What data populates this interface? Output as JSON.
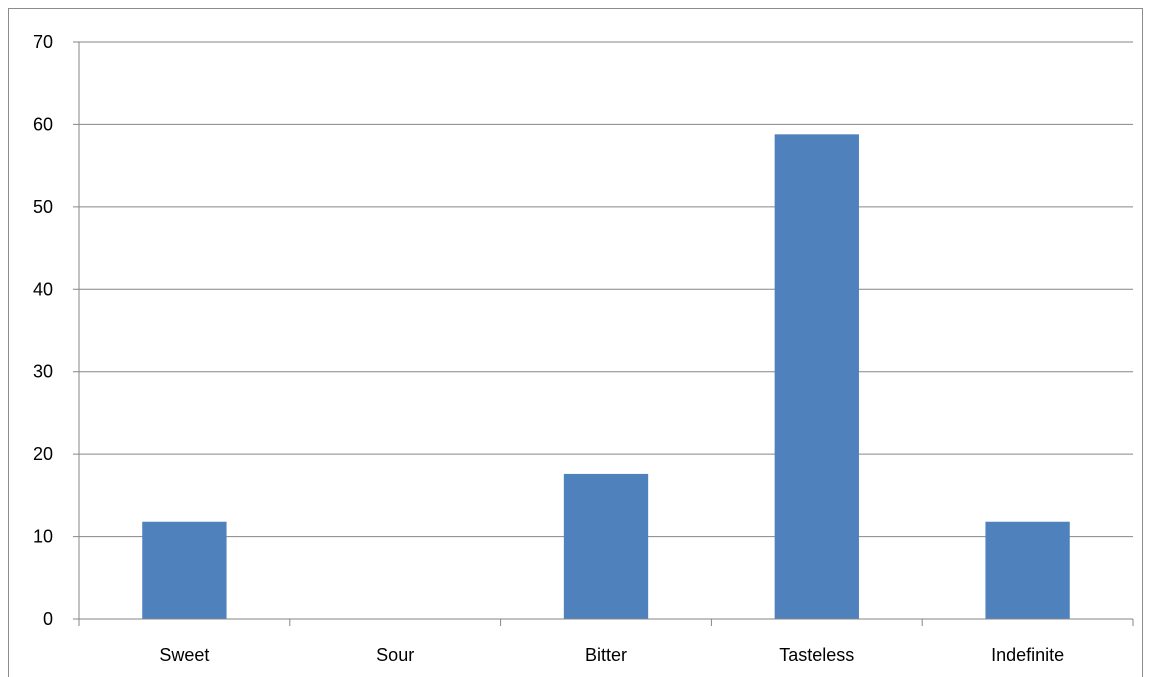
{
  "chart_data": {
    "type": "bar",
    "title": "",
    "xlabel": "",
    "ylabel": "",
    "categories": [
      "Sweet",
      "Sour",
      "Bitter",
      "Tasteless",
      "Indefinite"
    ],
    "values": [
      11.8,
      0,
      17.6,
      58.8,
      11.8
    ],
    "ylim": [
      0,
      70
    ],
    "yticks": [
      "0",
      "10",
      "20",
      "30",
      "40",
      "50",
      "60",
      "70"
    ],
    "grid": true,
    "legend": "none",
    "colors": {
      "bar": "#4f81bd",
      "grid": "#868686",
      "axis": "#868686"
    }
  }
}
